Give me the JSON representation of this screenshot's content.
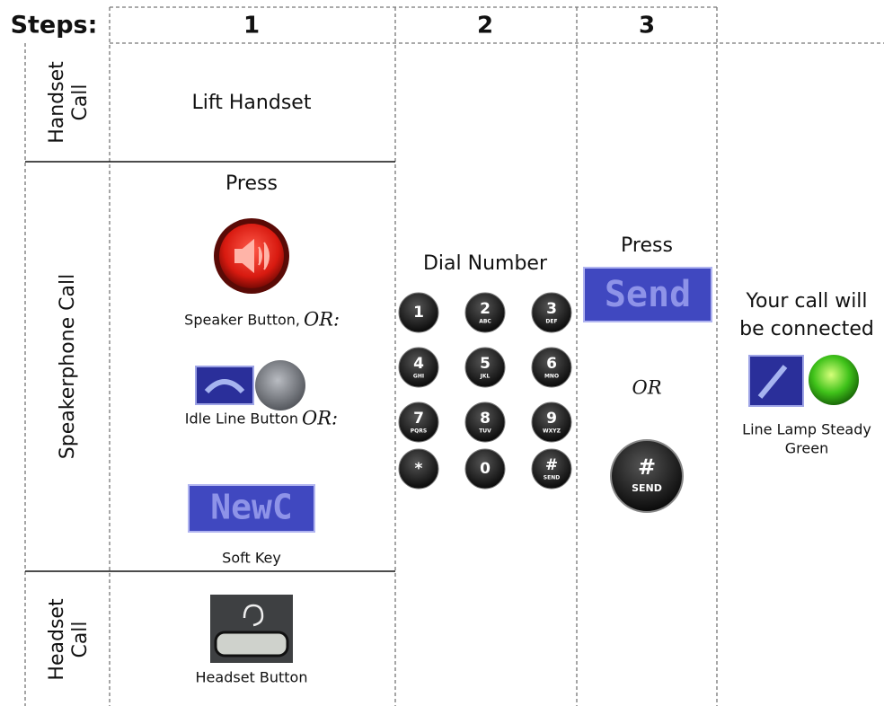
{
  "header": {
    "title": "Steps:",
    "steps": [
      "1",
      "2",
      "3"
    ]
  },
  "rows": [
    {
      "label_lines": [
        "Handset",
        "Call"
      ]
    },
    {
      "label_lines": [
        "Speakerphone Call"
      ]
    },
    {
      "label_lines": [
        "Headset",
        "Call"
      ]
    }
  ],
  "step1": {
    "handset": "Lift Handset",
    "speaker": {
      "press": "Press",
      "speaker_button": "Speaker Button,",
      "or1": "OR:",
      "idle_line": "Idle Line Button",
      "or2": "OR:",
      "soft_key_display": "NewC",
      "soft_key": "Soft Key"
    },
    "headset": "Headset Button"
  },
  "step2": {
    "title": "Dial Number",
    "keys": [
      {
        "digit": "1"
      },
      {
        "digit": "2",
        "letters": "ABC"
      },
      {
        "digit": "3",
        "letters": "DEF"
      },
      {
        "digit": "4",
        "letters": "GHI"
      },
      {
        "digit": "5",
        "letters": "JKL"
      },
      {
        "digit": "6",
        "letters": "MNO"
      },
      {
        "digit": "7",
        "letters": "PQRS"
      },
      {
        "digit": "8",
        "letters": "TUV"
      },
      {
        "digit": "9",
        "letters": "WXYZ"
      },
      {
        "digit": "*"
      },
      {
        "digit": "0"
      },
      {
        "digit": "#",
        "letters": "SEND"
      }
    ]
  },
  "step3": {
    "press": "Press",
    "send_display": "Send",
    "or": "OR",
    "hash": "#",
    "hash_label": "SEND"
  },
  "result": {
    "lines": [
      "Your call will",
      "be connected"
    ],
    "lamp_label_lines": [
      "Line Lamp Steady",
      "Green"
    ]
  }
}
